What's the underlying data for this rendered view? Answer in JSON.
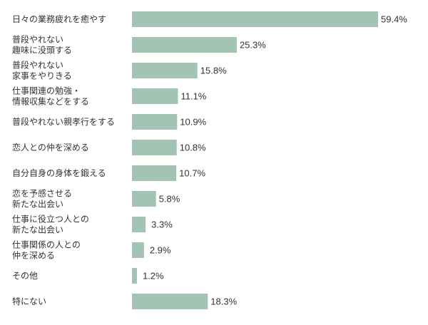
{
  "chart_data": {
    "type": "bar",
    "orientation": "horizontal",
    "unit": "%",
    "categories": [
      [
        "日々の業務疲れを癒やす"
      ],
      [
        "普段やれない",
        "趣味に没頭する"
      ],
      [
        "普段やれない",
        "家事をやりきる"
      ],
      [
        "仕事関連の勉強・",
        "情報収集などをする"
      ],
      [
        "普段やれない親孝行をする"
      ],
      [
        "恋人との仲を深める"
      ],
      [
        "自分自身の身体を鍛える"
      ],
      [
        "恋を予感させる",
        "新たな出会い"
      ],
      [
        "仕事に役立つ人との",
        "新たな出会い"
      ],
      [
        "仕事関係の人との",
        "仲を深める"
      ],
      [
        "その他"
      ],
      [
        "特にない"
      ]
    ],
    "values": [
      59.4,
      25.3,
      15.8,
      11.1,
      10.9,
      10.8,
      10.7,
      5.8,
      3.3,
      2.9,
      1.2,
      18.3
    ],
    "value_labels": [
      "59.4%",
      "25.3%",
      "15.8%",
      "11.1%",
      "10.9%",
      "10.8%",
      "10.7%",
      "5.8%",
      "3.3%",
      "2.9%",
      "1.2%",
      "18.3%"
    ],
    "xlim": [
      0,
      59.4
    ],
    "bar_color": "#a3c4b3",
    "grid": false,
    "legend": "none"
  }
}
